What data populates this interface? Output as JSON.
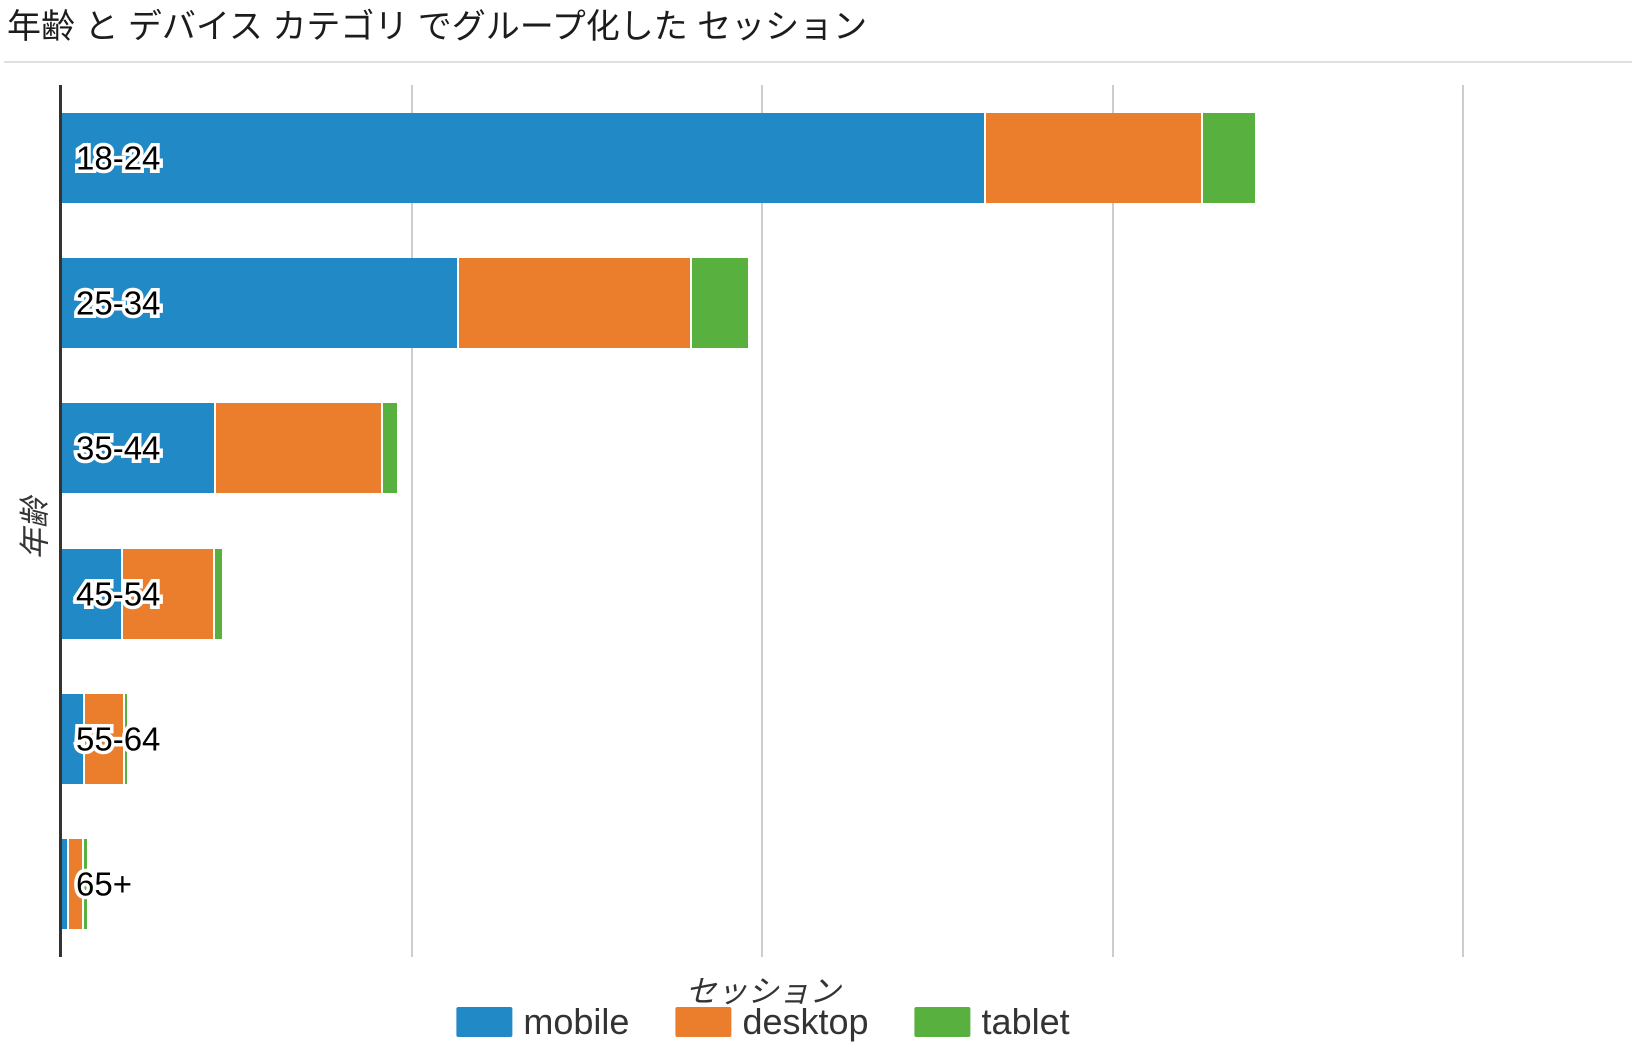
{
  "chart_data": {
    "type": "bar",
    "orientation": "horizontal",
    "stacked": true,
    "title": "年齢 と デバイス カテゴリ でグループ化した セッション",
    "xlabel": "セッション",
    "ylabel": "年齢",
    "categories": [
      "18-24",
      "25-34",
      "35-44",
      "45-54",
      "55-64",
      "65+"
    ],
    "series": [
      {
        "name": "mobile",
        "color": "#2189c6",
        "values": [
          2630,
          1127,
          434,
          168,
          60,
          13
        ]
      },
      {
        "name": "desktop",
        "color": "#eb7e2c",
        "values": [
          620,
          665,
          476,
          262,
          114,
          45
        ]
      },
      {
        "name": "tablet",
        "color": "#58b13e",
        "values": [
          155,
          166,
          46,
          26,
          11,
          9
        ]
      }
    ],
    "xlim": [
      0,
      4000
    ],
    "x_gridlines": [
      1000,
      2000,
      3000,
      4000
    ],
    "x_tick_labels_visible": false,
    "grid": true,
    "legend_position": "bottom",
    "category_labels_inside_bars": true
  },
  "colors": {
    "background": "#ffffff",
    "axis_line": "#333333",
    "gridline": "#cdcdcd",
    "divider": "#e0e0e0",
    "title_text": "#1c1c1c",
    "bar_label_fill": "#000000",
    "bar_label_halo": "#ffffff",
    "legend_text": "#333333"
  }
}
